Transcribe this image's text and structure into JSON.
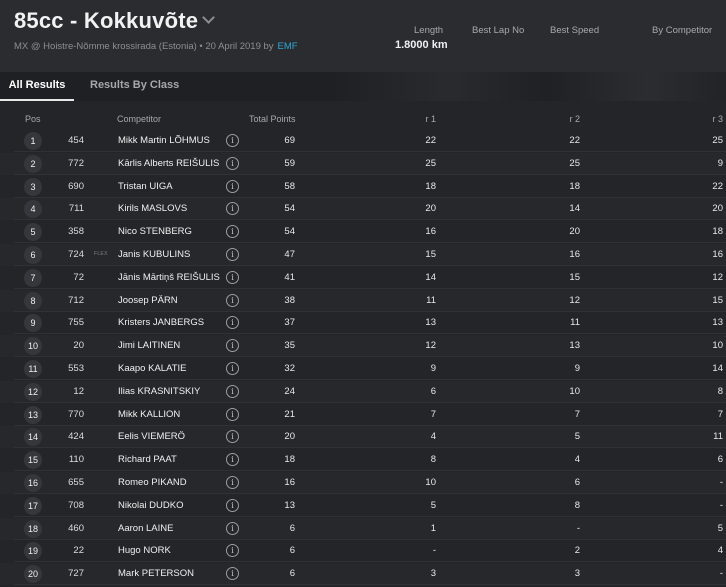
{
  "event": {
    "title": "85cc - Kokkuvõte",
    "subtitle": "MX @ Hoistre-Nõmme krossirada (Estonia) • 20 April 2019 by",
    "organizer": "EMF"
  },
  "stats": {
    "length_label": "Length",
    "length_value": "1.8000 km",
    "best_lap_label": "Best Lap No",
    "best_speed_label": "Best Speed",
    "by_competitor_label": "By Competitor"
  },
  "tabs": [
    {
      "label": "All Results",
      "active": true
    },
    {
      "label": "Results By Class",
      "active": false
    }
  ],
  "columns": {
    "pos": "Pos",
    "competitor": "Competitor",
    "total_points": "Total Points",
    "r1": "r 1",
    "r2": "r 2",
    "r3": "r 3"
  },
  "info_glyph": "i",
  "rows": [
    {
      "pos": "1",
      "num": "454",
      "flex": "",
      "name": "Mikk Martin LÕHMUS",
      "pts": "69",
      "r1": "22",
      "r2": "22",
      "r3": "25"
    },
    {
      "pos": "2",
      "num": "772",
      "flex": "",
      "name": "Kārlis Alberts REIŠULIS",
      "pts": "59",
      "r1": "25",
      "r2": "25",
      "r3": "9"
    },
    {
      "pos": "3",
      "num": "690",
      "flex": "",
      "name": "Tristan UIGA",
      "pts": "58",
      "r1": "18",
      "r2": "18",
      "r3": "22"
    },
    {
      "pos": "4",
      "num": "711",
      "flex": "",
      "name": "Kirils MASLOVS",
      "pts": "54",
      "r1": "20",
      "r2": "14",
      "r3": "20"
    },
    {
      "pos": "5",
      "num": "358",
      "flex": "",
      "name": "Nico STENBERG",
      "pts": "54",
      "r1": "16",
      "r2": "20",
      "r3": "18"
    },
    {
      "pos": "6",
      "num": "724",
      "flex": "FLEX",
      "name": "Janis KUBULINS",
      "pts": "47",
      "r1": "15",
      "r2": "16",
      "r3": "16"
    },
    {
      "pos": "7",
      "num": "72",
      "flex": "",
      "name": "Jānis Mārtiņš REIŠULIS",
      "pts": "41",
      "r1": "14",
      "r2": "15",
      "r3": "12"
    },
    {
      "pos": "8",
      "num": "712",
      "flex": "",
      "name": "Joosep PÄRN",
      "pts": "38",
      "r1": "11",
      "r2": "12",
      "r3": "15"
    },
    {
      "pos": "9",
      "num": "755",
      "flex": "",
      "name": "Kristers JANBERGS",
      "pts": "37",
      "r1": "13",
      "r2": "11",
      "r3": "13"
    },
    {
      "pos": "10",
      "num": "20",
      "flex": "",
      "name": "Jimi LAITINEN",
      "pts": "35",
      "r1": "12",
      "r2": "13",
      "r3": "10"
    },
    {
      "pos": "11",
      "num": "553",
      "flex": "",
      "name": "Kaapo KALATIE",
      "pts": "32",
      "r1": "9",
      "r2": "9",
      "r3": "14"
    },
    {
      "pos": "12",
      "num": "12",
      "flex": "",
      "name": "Ilias KRASNITSKIY",
      "pts": "24",
      "r1": "6",
      "r2": "10",
      "r3": "8"
    },
    {
      "pos": "13",
      "num": "770",
      "flex": "",
      "name": "Mikk KALLION",
      "pts": "21",
      "r1": "7",
      "r2": "7",
      "r3": "7"
    },
    {
      "pos": "14",
      "num": "424",
      "flex": "",
      "name": "Eelis VIEMERÖ",
      "pts": "20",
      "r1": "4",
      "r2": "5",
      "r3": "11"
    },
    {
      "pos": "15",
      "num": "110",
      "flex": "",
      "name": "Richard PAAT",
      "pts": "18",
      "r1": "8",
      "r2": "4",
      "r3": "6"
    },
    {
      "pos": "16",
      "num": "655",
      "flex": "",
      "name": "Romeo PIKAND",
      "pts": "16",
      "r1": "10",
      "r2": "6",
      "r3": "-"
    },
    {
      "pos": "17",
      "num": "708",
      "flex": "",
      "name": "Nikolai DUDKO",
      "pts": "13",
      "r1": "5",
      "r2": "8",
      "r3": "-"
    },
    {
      "pos": "18",
      "num": "460",
      "flex": "",
      "name": "Aaron LAINE",
      "pts": "6",
      "r1": "1",
      "r2": "-",
      "r3": "5"
    },
    {
      "pos": "19",
      "num": "22",
      "flex": "",
      "name": "Hugo NORK",
      "pts": "6",
      "r1": "-",
      "r2": "2",
      "r3": "4"
    },
    {
      "pos": "20",
      "num": "727",
      "flex": "",
      "name": "Mark PETERSON",
      "pts": "6",
      "r1": "3",
      "r2": "3",
      "r3": "-"
    }
  ]
}
